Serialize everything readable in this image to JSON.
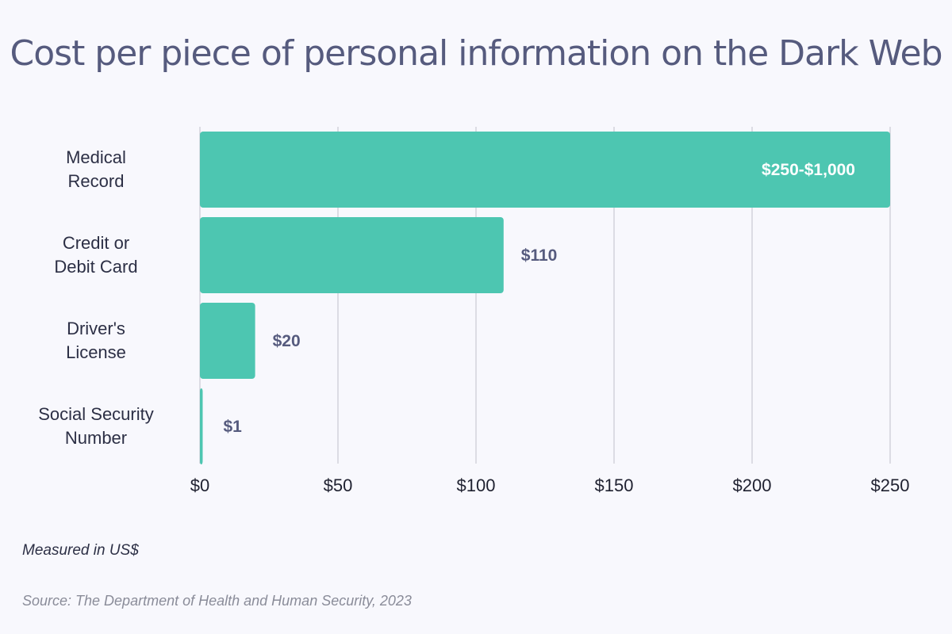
{
  "title": "Cost per piece of personal information on the Dark Web",
  "note": "Measured in US$",
  "source": "Source: The Department of Health and Human Security, 2023",
  "colors": {
    "bar": "#4dc6b1",
    "grid": "#c9cad3",
    "title": "#565b7e",
    "label": "#565b7e",
    "background": "#f8f8fd"
  },
  "chart_data": {
    "type": "bar",
    "orientation": "horizontal",
    "categories": [
      [
        "Medical",
        "Record"
      ],
      [
        "Credit or",
        "Debit Card"
      ],
      [
        "Driver's",
        "License"
      ],
      [
        "Social Security",
        "Number"
      ]
    ],
    "values": [
      250,
      110,
      20,
      1
    ],
    "data_labels": [
      "$250-$1,000",
      "$110",
      "$20",
      "$1"
    ],
    "xlim": [
      0,
      250
    ],
    "xticks": [
      0,
      50,
      100,
      150,
      200,
      250
    ],
    "xtick_labels": [
      "$0",
      "$50",
      "$100",
      "$150",
      "$200",
      "$250"
    ],
    "grid": true,
    "legend": "none"
  }
}
